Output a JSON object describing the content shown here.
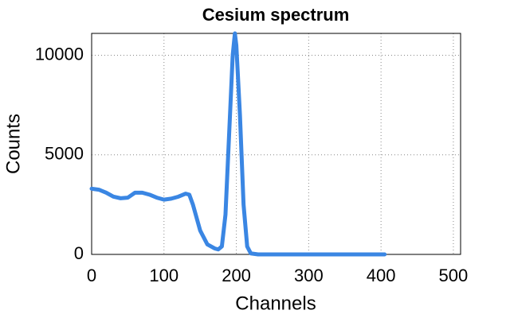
{
  "chart_data": {
    "type": "line",
    "title": "Cesium spectrum",
    "xlabel": "Channels",
    "ylabel": "Counts",
    "x": [
      0,
      10,
      20,
      30,
      40,
      50,
      60,
      70,
      80,
      90,
      100,
      110,
      120,
      130,
      135,
      140,
      150,
      160,
      170,
      175,
      180,
      185,
      190,
      195,
      198,
      200,
      205,
      210,
      215,
      220,
      230,
      300,
      400,
      405
    ],
    "series": [
      {
        "name": "Cesium",
        "color": "#3a86e3",
        "values": [
          3300,
          3250,
          3100,
          2900,
          2820,
          2850,
          3100,
          3100,
          3000,
          2850,
          2750,
          2800,
          2900,
          3050,
          3000,
          2500,
          1200,
          500,
          300,
          250,
          400,
          2000,
          6000,
          10000,
          11100,
          10500,
          7000,
          2500,
          400,
          50,
          0,
          0,
          0,
          0
        ]
      }
    ],
    "xlim": [
      0,
      510
    ],
    "ylim": [
      0,
      11100
    ],
    "xticks": [
      0,
      100,
      200,
      300,
      400,
      500
    ],
    "yticks": [
      0,
      5000,
      10000
    ],
    "grid": true
  }
}
